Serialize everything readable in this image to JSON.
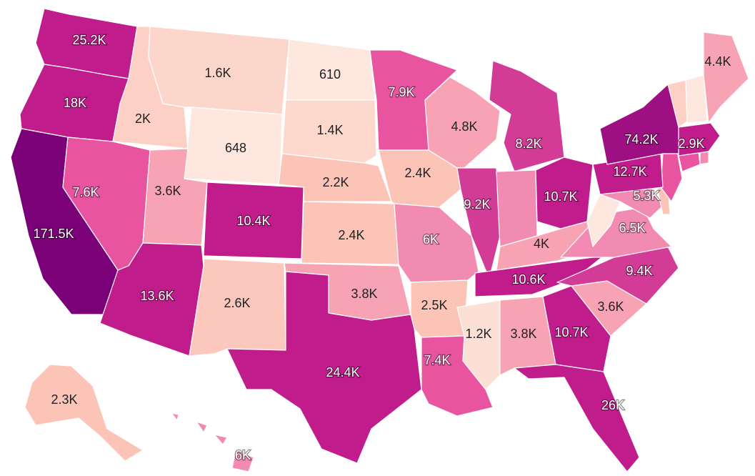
{
  "palette": [
    "#fde7df",
    "#fcd0c5",
    "#fbbcb4",
    "#f8a3b3",
    "#f28bb1",
    "#e8549f",
    "#d23c97",
    "#c01c8b",
    "#9d0f82",
    "#7a0177"
  ],
  "states": [
    {
      "code": "WA",
      "label": "25.2K",
      "value": 25200,
      "fill": "#c01c8b"
    },
    {
      "code": "OR",
      "label": "18K",
      "value": 18000,
      "fill": "#c01c8b"
    },
    {
      "code": "CA",
      "label": "171.5K",
      "value": 171500,
      "fill": "#7a0177"
    },
    {
      "code": "ID",
      "label": "2K",
      "value": 2000,
      "fill": "#fcd0c5"
    },
    {
      "code": "NV",
      "label": "7.6K",
      "value": 7600,
      "fill": "#e8549f"
    },
    {
      "code": "MT",
      "label": "1.6K",
      "value": 1600,
      "fill": "#fcd6cb"
    },
    {
      "code": "WY",
      "label": "648",
      "value": 648,
      "fill": "#fde7df"
    },
    {
      "code": "UT",
      "label": "3.6K",
      "value": 3600,
      "fill": "#f8a3b3"
    },
    {
      "code": "AZ",
      "label": "13.6K",
      "value": 13600,
      "fill": "#c01c8b"
    },
    {
      "code": "CO",
      "label": "10.4K",
      "value": 10400,
      "fill": "#c01c8b"
    },
    {
      "code": "NM",
      "label": "2.6K",
      "value": 2600,
      "fill": "#fcc8bd"
    },
    {
      "code": "ND",
      "label": "610",
      "value": 610,
      "fill": "#fde7df"
    },
    {
      "code": "SD",
      "label": "1.4K",
      "value": 1400,
      "fill": "#fcd8cd"
    },
    {
      "code": "NE",
      "label": "2.2K",
      "value": 2200,
      "fill": "#fbc4b7"
    },
    {
      "code": "KS",
      "label": "2.4K",
      "value": 2400,
      "fill": "#fbc4b7"
    },
    {
      "code": "OK",
      "label": "3.8K",
      "value": 3800,
      "fill": "#f8a3b3"
    },
    {
      "code": "TX",
      "label": "24.4K",
      "value": 24400,
      "fill": "#c01c8b"
    },
    {
      "code": "MN",
      "label": "7.9K",
      "value": 7900,
      "fill": "#e8549f"
    },
    {
      "code": "IA",
      "label": "2.4K",
      "value": 2400,
      "fill": "#fbc4b7"
    },
    {
      "code": "MO",
      "label": "6K",
      "value": 6000,
      "fill": "#f28bb1"
    },
    {
      "code": "AR",
      "label": "2.5K",
      "value": 2500,
      "fill": "#fbc4b7"
    },
    {
      "code": "LA",
      "label": "7.4K",
      "value": 7400,
      "fill": "#e8549f"
    },
    {
      "code": "WI",
      "label": "4.8K",
      "value": 4800,
      "fill": "#f8a3b3"
    },
    {
      "code": "IL",
      "label": "9.2K",
      "value": 9200,
      "fill": "#d23c97"
    },
    {
      "code": "MI",
      "label": "8.2K",
      "value": 8200,
      "fill": "#d23c97"
    },
    {
      "code": "IN",
      "label": "",
      "value": null,
      "fill": "#f28bb1"
    },
    {
      "code": "OH",
      "label": "10.7K",
      "value": 10700,
      "fill": "#c01c8b"
    },
    {
      "code": "KY",
      "label": "4K",
      "value": 4000,
      "fill": "#f8a3b3"
    },
    {
      "code": "TN",
      "label": "10.6K",
      "value": 10600,
      "fill": "#c01c8b"
    },
    {
      "code": "MS",
      "label": "1.2K",
      "value": 1200,
      "fill": "#fde0d5"
    },
    {
      "code": "AL",
      "label": "3.8K",
      "value": 3800,
      "fill": "#f8a3b3"
    },
    {
      "code": "GA",
      "label": "10.7K",
      "value": 10700,
      "fill": "#c01c8b"
    },
    {
      "code": "FL",
      "label": "26K",
      "value": 26000,
      "fill": "#c01c8b"
    },
    {
      "code": "SC",
      "label": "3.6K",
      "value": 3600,
      "fill": "#f8a3b3"
    },
    {
      "code": "NC",
      "label": "9.4K",
      "value": 9400,
      "fill": "#d23c97"
    },
    {
      "code": "VA",
      "label": "6.5K",
      "value": 6500,
      "fill": "#f28bb1"
    },
    {
      "code": "WV",
      "label": "",
      "value": null,
      "fill": "#fde7df"
    },
    {
      "code": "MD",
      "label": "5.3K",
      "value": 5300,
      "fill": "#f28bb1"
    },
    {
      "code": "DE",
      "label": "",
      "value": null,
      "fill": "#fbc4b7"
    },
    {
      "code": "NJ",
      "label": "",
      "value": null,
      "fill": "#e8549f"
    },
    {
      "code": "PA",
      "label": "12.7K",
      "value": 12700,
      "fill": "#c01c8b"
    },
    {
      "code": "NY",
      "label": "74.2K",
      "value": 74200,
      "fill": "#9d0f82"
    },
    {
      "code": "CT",
      "label": "",
      "value": null,
      "fill": "#e8549f"
    },
    {
      "code": "RI",
      "label": "",
      "value": null,
      "fill": "#f28bb1"
    },
    {
      "code": "MA",
      "label": "2.9K",
      "value": 2900,
      "fill": "#c01c8b"
    },
    {
      "code": "VT",
      "label": "",
      "value": null,
      "fill": "#fcd0c5"
    },
    {
      "code": "NH",
      "label": "",
      "value": null,
      "fill": "#fde7df"
    },
    {
      "code": "ME",
      "label": "4.4K",
      "value": 4400,
      "fill": "#f8a3b3"
    },
    {
      "code": "AK",
      "label": "2.3K",
      "value": 2300,
      "fill": "#fbc4b7"
    },
    {
      "code": "HI",
      "label": "6K",
      "value": 6000,
      "fill": "#f28bb1"
    }
  ]
}
